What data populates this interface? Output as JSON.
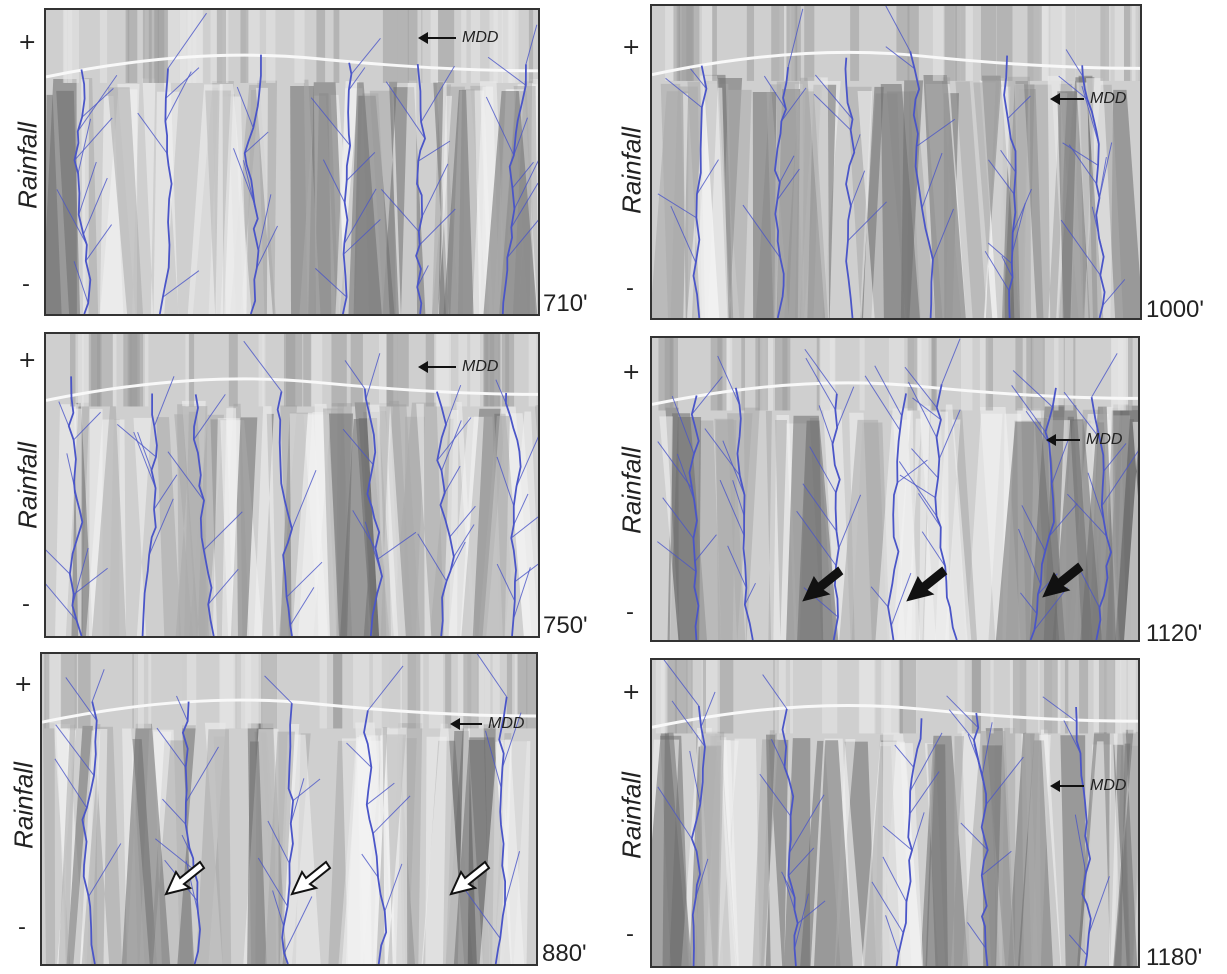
{
  "common": {
    "ylabel": "Rainfall",
    "plus": "+",
    "minus": "-",
    "mdd_label": "MDD"
  },
  "panels": [
    {
      "time": "710'"
    },
    {
      "time": "750'"
    },
    {
      "time": "880'"
    },
    {
      "time": "1000'"
    },
    {
      "time": "1120'"
    },
    {
      "time": "1180'"
    }
  ],
  "colors": {
    "channel": "#4a55c8",
    "terrain_light": "#f2f2f2",
    "terrain_dark": "#6e6e6e",
    "frame": "#333333"
  }
}
